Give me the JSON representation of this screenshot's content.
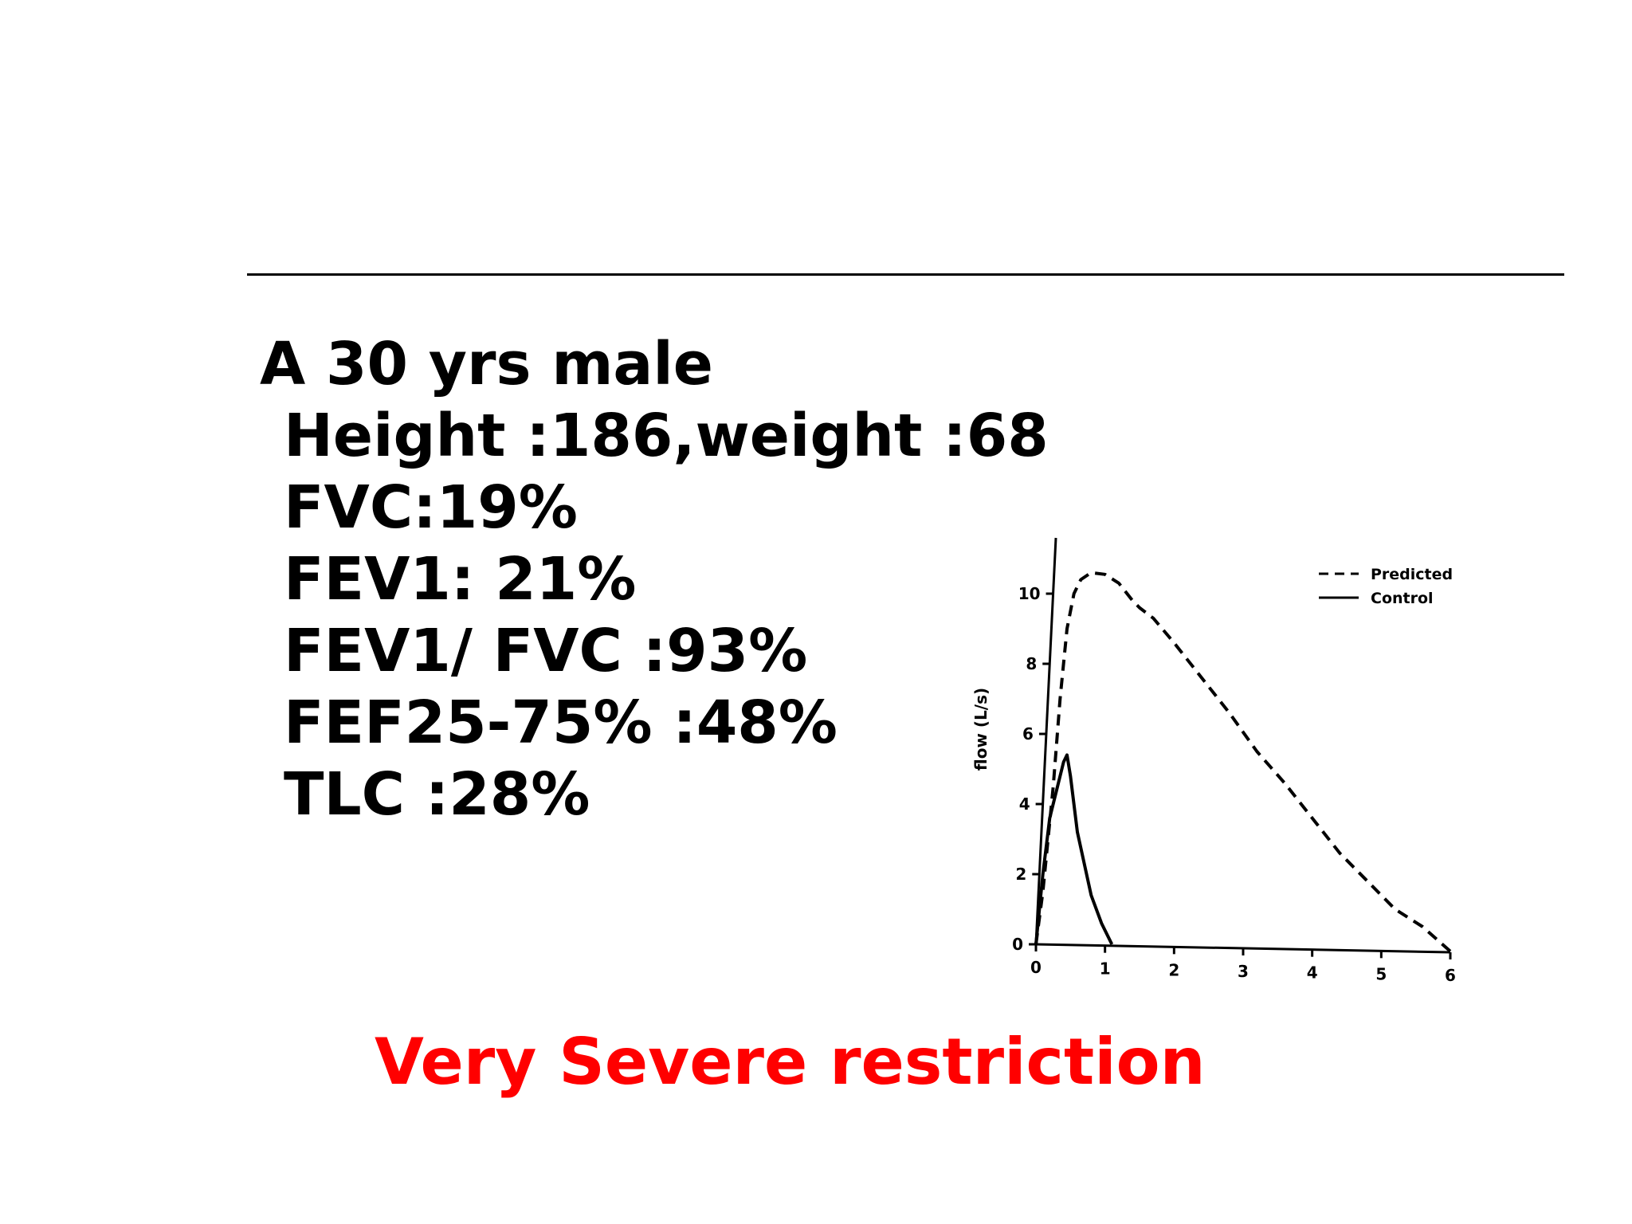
{
  "case": {
    "intro": "A 30 yrs male",
    "lines": [
      "Height :186,weight :68",
      "FVC:19%",
      "FEV1: 21%",
      "FEV1/ FVC :93%",
      "FEF25-75% :48%",
      "TLC :28%"
    ]
  },
  "conclusion": {
    "text": "Very Severe restriction",
    "color": "#ff0000"
  },
  "chart_data": {
    "type": "line",
    "ylabel": "flow (L/s)",
    "xlabel": "",
    "xlim": [
      0,
      6
    ],
    "ylim": [
      0,
      11
    ],
    "x_ticks": [
      "0",
      "1",
      "2",
      "3",
      "4",
      "5",
      "6"
    ],
    "y_ticks": [
      "0",
      "2",
      "4",
      "6",
      "8",
      "10"
    ],
    "legend_position": "top-right",
    "series": [
      {
        "name": "Predicted",
        "style": "dashed",
        "x": [
          0,
          0.1,
          0.25,
          0.35,
          0.45,
          0.55,
          0.65,
          0.8,
          1.0,
          1.2,
          1.4,
          1.5,
          1.7,
          2.0,
          2.4,
          2.8,
          3.2,
          3.6,
          4.0,
          4.4,
          4.8,
          5.2,
          5.6,
          6.0
        ],
        "values": [
          0,
          1.5,
          4.5,
          7.0,
          9.0,
          10.0,
          10.4,
          10.6,
          10.55,
          10.3,
          9.8,
          9.6,
          9.3,
          8.6,
          7.6,
          6.6,
          5.5,
          4.6,
          3.6,
          2.6,
          1.8,
          1.0,
          0.5,
          -0.2
        ]
      },
      {
        "name": "Control",
        "style": "solid",
        "x": [
          0,
          0.1,
          0.2,
          0.3,
          0.4,
          0.45,
          0.5,
          0.6,
          0.8,
          0.95,
          1.1
        ],
        "values": [
          0,
          2.0,
          3.6,
          4.4,
          5.2,
          5.4,
          4.8,
          3.2,
          1.4,
          0.6,
          0
        ]
      }
    ]
  }
}
